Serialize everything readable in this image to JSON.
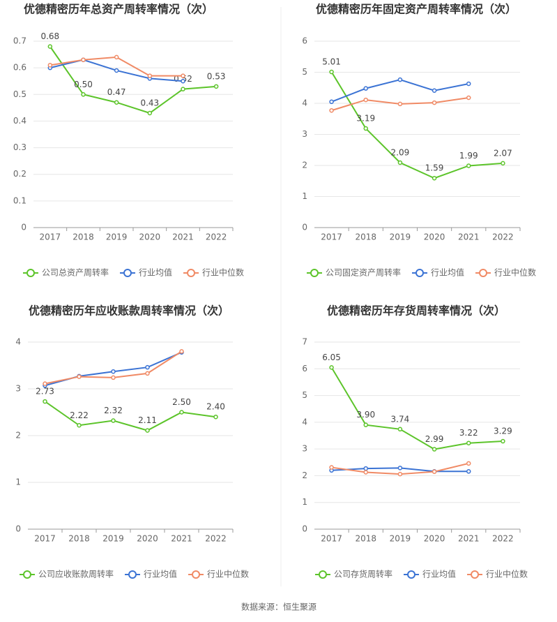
{
  "chart_data": [
    {
      "type": "line",
      "title": "优德精密历年总资产周转率情况（次）",
      "categories": [
        "2017",
        "2018",
        "2019",
        "2020",
        "2021",
        "2022"
      ],
      "ylim": [
        0,
        0.7
      ],
      "yticks": [
        0,
        0.1,
        0.2,
        0.3,
        0.4,
        0.5,
        0.6,
        0.7
      ],
      "grid": true,
      "legend": "bottom",
      "series": [
        {
          "name": "公司总资产周转率",
          "color": "#5cc42a",
          "values": [
            0.68,
            0.5,
            0.47,
            0.43,
            0.52,
            0.53
          ],
          "value_labels": [
            "0.68",
            "0.50",
            "0.47",
            "0.43",
            "0.52",
            "0.53"
          ]
        },
        {
          "name": "行业均值",
          "color": "#3b73d4",
          "values": [
            0.6,
            0.63,
            0.59,
            0.56,
            0.55,
            null
          ]
        },
        {
          "name": "行业中位数",
          "color": "#f08a65",
          "values": [
            0.61,
            0.63,
            0.64,
            0.57,
            0.57,
            null
          ]
        }
      ]
    },
    {
      "type": "line",
      "title": "优德精密历年固定资产周转率情况（次）",
      "categories": [
        "2017",
        "2018",
        "2019",
        "2020",
        "2021",
        "2022"
      ],
      "ylim": [
        0,
        6
      ],
      "yticks": [
        0,
        1,
        2,
        3,
        4,
        5,
        6
      ],
      "grid": true,
      "legend": "bottom",
      "series": [
        {
          "name": "公司固定资产周转率",
          "color": "#5cc42a",
          "values": [
            5.01,
            3.19,
            2.09,
            1.59,
            1.99,
            2.07
          ],
          "value_labels": [
            "5.01",
            "3.19",
            "2.09",
            "1.59",
            "1.99",
            "2.07"
          ]
        },
        {
          "name": "行业均值",
          "color": "#3b73d4",
          "values": [
            4.05,
            4.48,
            4.76,
            4.41,
            4.63,
            null
          ]
        },
        {
          "name": "行业中位数",
          "color": "#f08a65",
          "values": [
            3.77,
            4.11,
            3.98,
            4.02,
            4.18,
            null
          ]
        }
      ]
    },
    {
      "type": "line",
      "title": "优德精密历年应收账款周转率情况（次）",
      "categories": [
        "2017",
        "2018",
        "2019",
        "2020",
        "2021",
        "2022"
      ],
      "ylim": [
        0,
        4
      ],
      "yticks": [
        0,
        1,
        2,
        3,
        4
      ],
      "grid": true,
      "legend": "bottom",
      "series": [
        {
          "name": "公司应收账款周转率",
          "color": "#5cc42a",
          "values": [
            2.73,
            2.22,
            2.32,
            2.11,
            2.5,
            2.4
          ],
          "value_labels": [
            "2.73",
            "2.22",
            "2.32",
            "2.11",
            "2.50",
            "2.40"
          ]
        },
        {
          "name": "行业均值",
          "color": "#3b73d4",
          "values": [
            3.07,
            3.27,
            3.37,
            3.46,
            3.78,
            null
          ]
        },
        {
          "name": "行业中位数",
          "color": "#f08a65",
          "values": [
            3.11,
            3.26,
            3.24,
            3.33,
            3.8,
            null
          ]
        }
      ]
    },
    {
      "type": "line",
      "title": "优德精密历年存货周转率情况（次）",
      "categories": [
        "2017",
        "2018",
        "2019",
        "2020",
        "2021",
        "2022"
      ],
      "ylim": [
        0,
        7
      ],
      "yticks": [
        0,
        1,
        2,
        3,
        4,
        5,
        6,
        7
      ],
      "grid": true,
      "legend": "bottom",
      "series": [
        {
          "name": "公司存货周转率",
          "color": "#5cc42a",
          "values": [
            6.05,
            3.9,
            3.74,
            2.99,
            3.22,
            3.29
          ],
          "value_labels": [
            "6.05",
            "3.90",
            "3.74",
            "2.99",
            "3.22",
            "3.29"
          ]
        },
        {
          "name": "行业均值",
          "color": "#3b73d4",
          "values": [
            2.2,
            2.27,
            2.29,
            2.16,
            2.16,
            null
          ]
        },
        {
          "name": "行业中位数",
          "color": "#f08a65",
          "values": [
            2.31,
            2.13,
            2.06,
            2.15,
            2.46,
            null
          ]
        }
      ]
    }
  ],
  "source": "数据来源：恒生聚源"
}
